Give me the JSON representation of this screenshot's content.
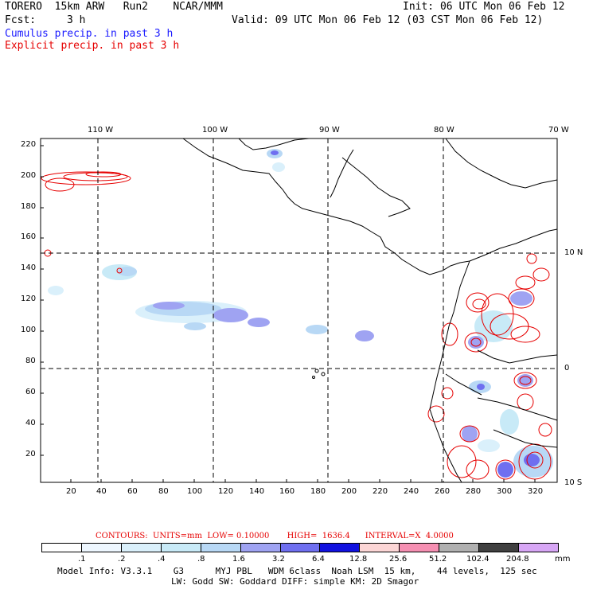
{
  "header": {
    "model": "TORERO  15km ARW   Run2    NCAR/MMM",
    "init": "Init: 06 UTC Mon 06 Feb 12",
    "fcst_label": "Fcst:",
    "fcst_value": "3 h",
    "valid": "Valid: 09 UTC Mon 06 Feb 12 (03 CST Mon 06 Feb 12)",
    "cumulus": "Cumulus precip. in past 3 h",
    "explicit": "Explicit precip. in past 3 h"
  },
  "map": {
    "lon_labels": [
      "110 W",
      "100 W",
      "90 W",
      "80 W",
      "70 W"
    ],
    "lat_labels": [
      "10 N",
      "0",
      "10 S"
    ],
    "y_ticks": [
      "220",
      "200",
      "180",
      "160",
      "140",
      "120",
      "100",
      "80",
      "60",
      "40",
      "20"
    ],
    "x_ticks": [
      "20",
      "40",
      "60",
      "80",
      "100",
      "120",
      "140",
      "160",
      "180",
      "200",
      "220",
      "240",
      "260",
      "280",
      "300",
      "320"
    ],
    "colors": {
      "coastline": "#000000",
      "grid": "#000000",
      "explicit_contour": "#e60000"
    }
  },
  "contours": {
    "text": "CONTOURS:  UNITS=mm  LOW= 0.10000       HIGH=  1636.4      INTERVAL=X  4.0000"
  },
  "colorbar": {
    "unit": "mm",
    "labels": [
      ".1",
      ".2",
      ".4",
      ".8",
      "1.6",
      "3.2",
      "6.4",
      "12.8",
      "25.6",
      "51.2",
      "102.4",
      "204.8"
    ],
    "colors": [
      "#ffffff",
      "#eef7ff",
      "#daf0fb",
      "#c8eaf7",
      "#b8d8f5",
      "#9fa3f2",
      "#6f6ff0",
      "#1111e0",
      "#fcd6d6",
      "#f58fb2",
      "#b0b0b0",
      "#404040",
      "#d7a6f5"
    ]
  },
  "footer": {
    "line1": "Model Info: V3.3.1    G3      MYJ PBL   WDM 6class  Noah LSM  15 km,    44 levels,  125 sec",
    "line2": "LW: Godd SW: Goddard DIFF: simple KM: 2D Smagor"
  }
}
